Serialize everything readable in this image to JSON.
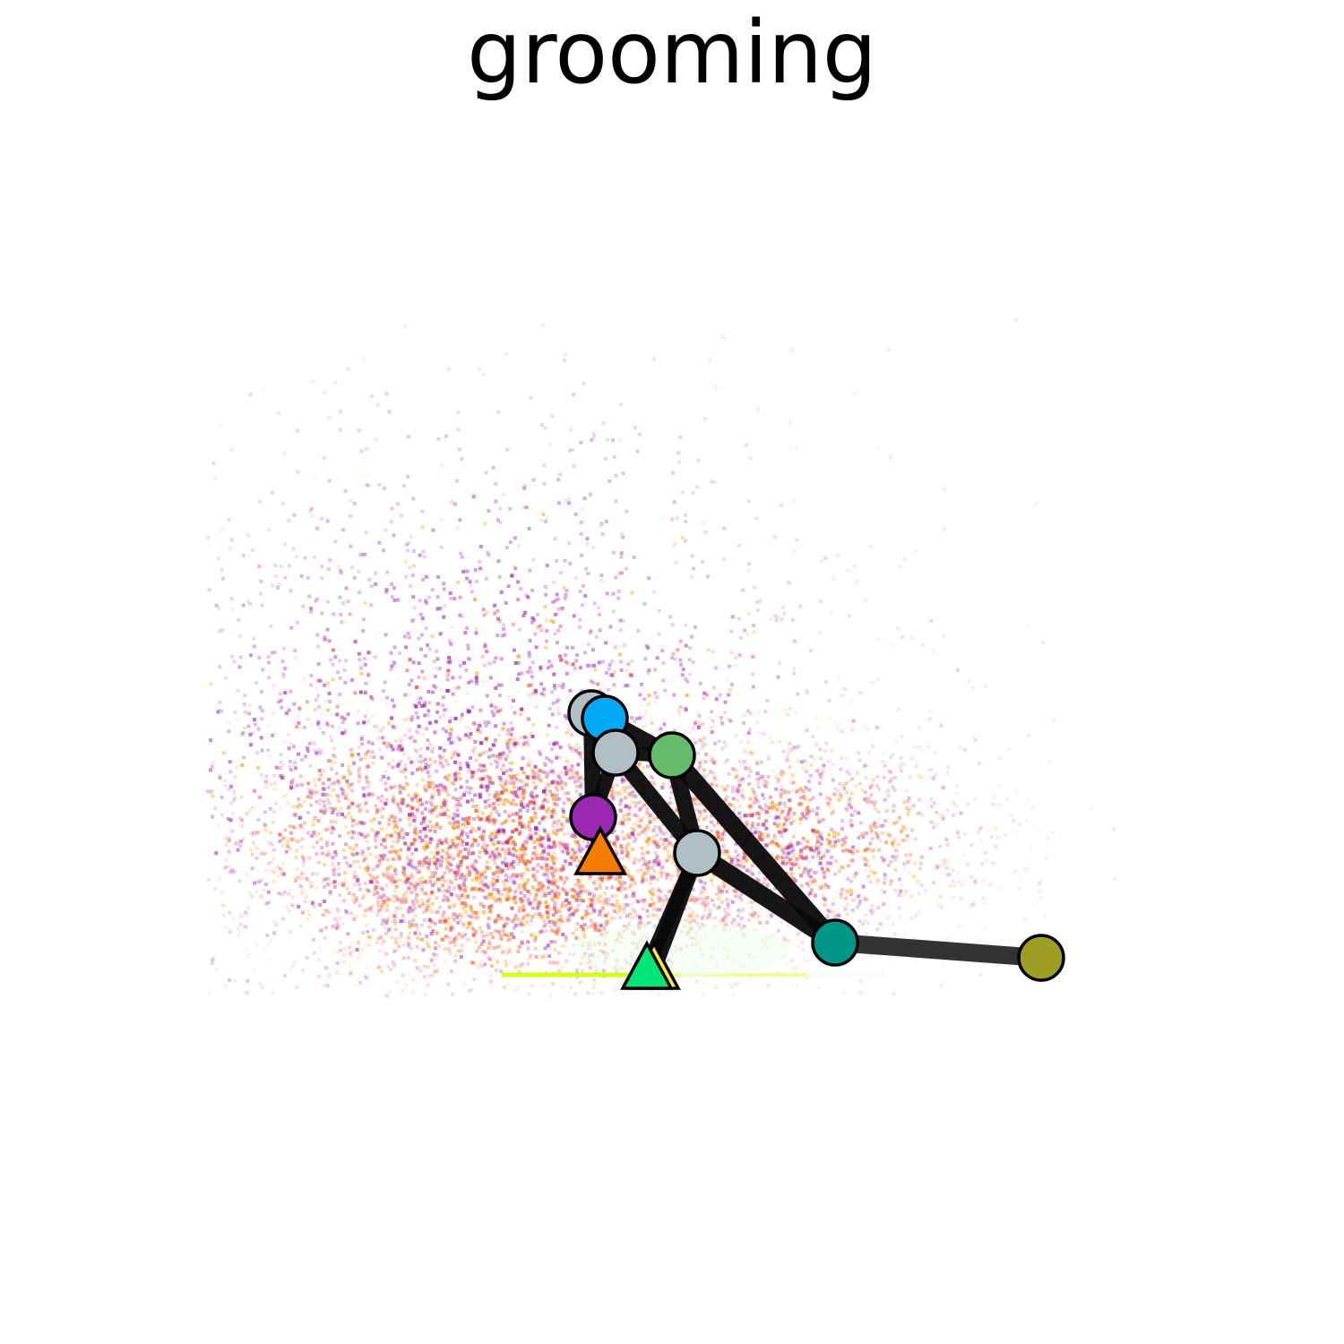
{
  "title": "grooming",
  "density_cloud": {
    "colors": [
      "#9c27b0",
      "#e91e63",
      "#f44336",
      "#ff9800",
      "#ab47bc",
      "#ff7043"
    ],
    "ground_trace_colors": [
      "#ccff00",
      "#e6ff66",
      "#f0fff0"
    ]
  },
  "skeleton": {
    "bone_color": "#0a0a0a",
    "tail_bone_color": "#333333",
    "outline_color": "#000000",
    "joints": [
      {
        "id": "head-top",
        "shape": "circle",
        "color": "#b0bec5"
      },
      {
        "id": "ear",
        "shape": "circle",
        "color": "#03a9f4"
      },
      {
        "id": "head-front",
        "shape": "circle",
        "color": "#b0bec5"
      },
      {
        "id": "neck",
        "shape": "circle",
        "color": "#66bb6a"
      },
      {
        "id": "chin",
        "shape": "circle",
        "color": "#9c27b0"
      },
      {
        "id": "front-paw",
        "shape": "triangle",
        "color": "#f57c00"
      },
      {
        "id": "spine-mid",
        "shape": "circle",
        "color": "#b0bec5"
      },
      {
        "id": "hind-paw-b",
        "shape": "triangle",
        "color": "#ffeb3b"
      },
      {
        "id": "hind-paw-a",
        "shape": "triangle",
        "color": "#00e676"
      },
      {
        "id": "hip",
        "shape": "circle",
        "color": "#009688"
      },
      {
        "id": "tail-tip",
        "shape": "circle",
        "color": "#9e9d24"
      }
    ]
  }
}
